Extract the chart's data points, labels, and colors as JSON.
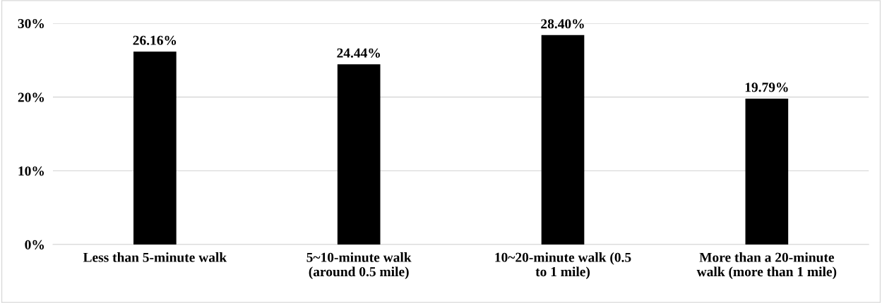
{
  "chart_data": {
    "type": "bar",
    "categories": [
      "Less than 5-minute walk",
      "5~10-minute walk\n(around 0.5 mile)",
      "10~20-minute walk (0.5\nto 1 mile)",
      "More than a 20-minute\nwalk (more than 1 mile)"
    ],
    "values": [
      26.16,
      24.44,
      28.4,
      19.79
    ],
    "value_labels": [
      "26.16%",
      "24.44%",
      "28.40%",
      "19.79%"
    ],
    "color": "#000000",
    "ylim": [
      0,
      30
    ],
    "yticks": [
      {
        "value": 0,
        "label": "0%"
      },
      {
        "value": 10,
        "label": "10%"
      },
      {
        "value": 20,
        "label": "20%"
      },
      {
        "value": 30,
        "label": "30%"
      }
    ],
    "grid": "y"
  }
}
